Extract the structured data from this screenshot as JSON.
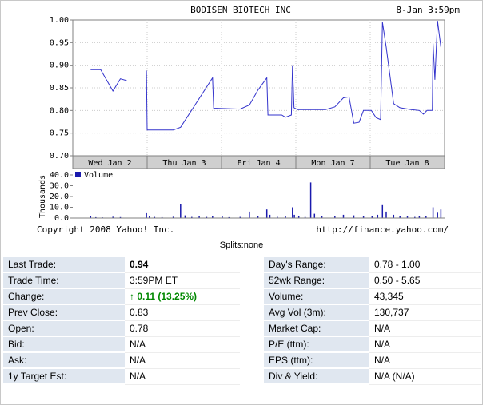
{
  "page": {
    "splits_label": "Splits:none"
  },
  "chart": {
    "title": "BODISEN BIOTECH INC",
    "timestamp": "8-Jan 3:59pm",
    "copyright": "Copyright 2008 Yahoo! Inc.",
    "url": "http://finance.yahoo.com/",
    "legend_volume": "Volume",
    "volume_unit_label": "Thousands"
  },
  "colors": {
    "price_line": "#3333cc",
    "volume_bar": "#1a1aae",
    "change_up": "#008800",
    "label_cell_bg": "#e0e7f0"
  },
  "chart_data": {
    "type": "line",
    "title": "BODISEN BIOTECH INC",
    "timestamp": "8-Jan 3:59pm",
    "days": [
      "Wed Jan 2",
      "Thu Jan 3",
      "Fri Jan 4",
      "Mon Jan 7",
      "Tue Jan 8"
    ],
    "price_ylim": [
      0.7,
      1.0
    ],
    "price_ticks": [
      "1.00",
      "0.95",
      "0.90",
      "0.85",
      "0.80",
      "0.75",
      "0.70"
    ],
    "price_segments": [
      [
        [
          4.8,
          0.89
        ],
        [
          7.5,
          0.89
        ],
        [
          10.8,
          0.843
        ],
        [
          12.8,
          0.87
        ],
        [
          14.5,
          0.866
        ]
      ],
      [
        [
          19.8,
          0.888
        ],
        [
          20.0,
          0.757
        ],
        [
          27.0,
          0.757
        ],
        [
          29.0,
          0.763
        ],
        [
          37.6,
          0.872
        ],
        [
          37.9,
          0.805
        ],
        [
          45.0,
          0.803
        ],
        [
          47.5,
          0.812
        ],
        [
          49.8,
          0.845
        ],
        [
          52.2,
          0.872
        ],
        [
          52.5,
          0.79
        ],
        [
          56.2,
          0.79
        ],
        [
          57.2,
          0.785
        ],
        [
          58.8,
          0.79
        ],
        [
          59.1,
          0.9
        ],
        [
          59.5,
          0.806
        ],
        [
          60.5,
          0.802
        ],
        [
          68.0,
          0.802
        ],
        [
          70.5,
          0.808
        ],
        [
          72.8,
          0.828
        ],
        [
          74.3,
          0.83
        ],
        [
          75.6,
          0.772
        ],
        [
          77.0,
          0.774
        ],
        [
          78.2,
          0.8
        ],
        [
          80.3,
          0.8
        ],
        [
          81.6,
          0.784
        ],
        [
          82.8,
          0.78
        ],
        [
          83.3,
          0.995
        ],
        [
          84.3,
          0.94
        ],
        [
          86.3,
          0.815
        ],
        [
          88.0,
          0.806
        ],
        [
          91.0,
          0.802
        ],
        [
          93.2,
          0.8
        ],
        [
          94.3,
          0.792
        ],
        [
          95.3,
          0.8
        ],
        [
          96.7,
          0.8
        ],
        [
          96.9,
          0.948
        ],
        [
          97.4,
          0.868
        ],
        [
          98.1,
          0.998
        ],
        [
          99.0,
          0.94
        ]
      ]
    ],
    "volume_unit": "Thousands",
    "volume_ylim": [
      0,
      40
    ],
    "volume_ticks": [
      "40.0",
      "30.0",
      "20.0",
      "10.0",
      "0.0"
    ],
    "volume_bars": [
      [
        4.8,
        1.5
      ],
      [
        6.2,
        0.8
      ],
      [
        8.0,
        0.6
      ],
      [
        10.8,
        1.2
      ],
      [
        12.8,
        0.9
      ],
      [
        19.8,
        4.5
      ],
      [
        20.6,
        2.0
      ],
      [
        22.0,
        1.0
      ],
      [
        24.0,
        0.8
      ],
      [
        27.0,
        1.2
      ],
      [
        29.0,
        13.0
      ],
      [
        30.2,
        2.5
      ],
      [
        32.0,
        1.0
      ],
      [
        34.0,
        1.6
      ],
      [
        36.0,
        1.0
      ],
      [
        37.6,
        2.2
      ],
      [
        40.2,
        1.5
      ],
      [
        42.0,
        0.8
      ],
      [
        45.0,
        1.0
      ],
      [
        47.5,
        6.0
      ],
      [
        49.8,
        2.2
      ],
      [
        52.2,
        8.0
      ],
      [
        53.0,
        3.0
      ],
      [
        55.0,
        1.2
      ],
      [
        57.2,
        1.5
      ],
      [
        59.1,
        10.0
      ],
      [
        59.6,
        3.0
      ],
      [
        60.8,
        2.0
      ],
      [
        62.5,
        1.0
      ],
      [
        64.0,
        33.0
      ],
      [
        65.0,
        4.0
      ],
      [
        67.0,
        1.5
      ],
      [
        70.5,
        2.0
      ],
      [
        72.8,
        3.0
      ],
      [
        75.6,
        2.5
      ],
      [
        78.2,
        1.5
      ],
      [
        80.5,
        2.0
      ],
      [
        82.0,
        3.0
      ],
      [
        83.3,
        12.0
      ],
      [
        84.3,
        6.0
      ],
      [
        86.3,
        3.0
      ],
      [
        88.0,
        2.0
      ],
      [
        90.0,
        1.5
      ],
      [
        92.0,
        1.0
      ],
      [
        93.2,
        2.0
      ],
      [
        95.0,
        1.5
      ],
      [
        96.9,
        10.0
      ],
      [
        98.1,
        5.0
      ],
      [
        99.0,
        8.0
      ]
    ]
  },
  "quote": {
    "left": [
      {
        "label": "Last Trade:",
        "value": "0.94",
        "style": "big"
      },
      {
        "label": "Trade Time:",
        "value": "3:59PM ET"
      },
      {
        "label": "Change:",
        "value": "0.11 (13.25%)",
        "style": "up",
        "arrow": "↑"
      },
      {
        "label": "Prev Close:",
        "value": "0.83"
      },
      {
        "label": "Open:",
        "value": "0.78"
      },
      {
        "label": "Bid:",
        "value": "N/A"
      },
      {
        "label": "Ask:",
        "value": "N/A"
      },
      {
        "label": "1y Target Est:",
        "value": "N/A"
      }
    ],
    "right": [
      {
        "label": "Day's Range:",
        "value": "0.78 - 1.00"
      },
      {
        "label": "52wk Range:",
        "value": "0.50 - 5.65"
      },
      {
        "label": "Volume:",
        "value": "43,345"
      },
      {
        "label": "Avg Vol (3m):",
        "value": "130,737"
      },
      {
        "label": "Market Cap:",
        "value": "N/A"
      },
      {
        "label": "P/E (ttm):",
        "value": "N/A"
      },
      {
        "label": "EPS (ttm):",
        "value": "N/A"
      },
      {
        "label": "Div & Yield:",
        "value": "N/A (N/A)"
      }
    ]
  }
}
